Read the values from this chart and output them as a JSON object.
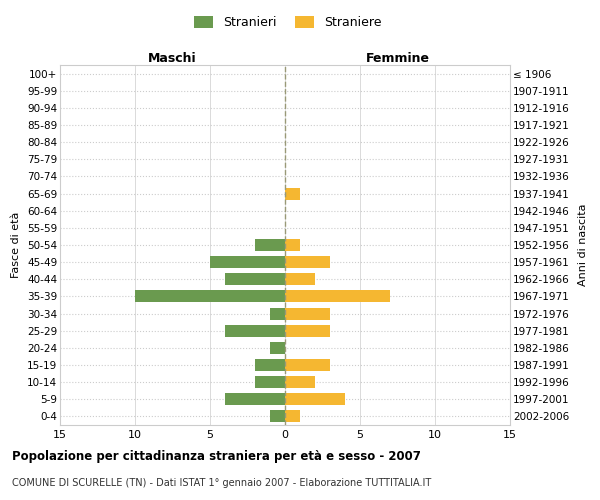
{
  "age_groups": [
    "100+",
    "95-99",
    "90-94",
    "85-89",
    "80-84",
    "75-79",
    "70-74",
    "65-69",
    "60-64",
    "55-59",
    "50-54",
    "45-49",
    "40-44",
    "35-39",
    "30-34",
    "25-29",
    "20-24",
    "15-19",
    "10-14",
    "5-9",
    "0-4"
  ],
  "birth_years": [
    "≤ 1906",
    "1907-1911",
    "1912-1916",
    "1917-1921",
    "1922-1926",
    "1927-1931",
    "1932-1936",
    "1937-1941",
    "1942-1946",
    "1947-1951",
    "1952-1956",
    "1957-1961",
    "1962-1966",
    "1967-1971",
    "1972-1976",
    "1977-1981",
    "1982-1986",
    "1987-1991",
    "1992-1996",
    "1997-2001",
    "2002-2006"
  ],
  "maschi": [
    0,
    0,
    0,
    0,
    0,
    0,
    0,
    0,
    0,
    0,
    2,
    5,
    4,
    10,
    1,
    4,
    1,
    2,
    2,
    4,
    1
  ],
  "femmine": [
    0,
    0,
    0,
    0,
    0,
    0,
    0,
    1,
    0,
    0,
    1,
    3,
    2,
    7,
    3,
    3,
    0,
    3,
    2,
    4,
    1
  ],
  "male_color": "#6a9a4f",
  "female_color": "#f5b731",
  "title1": "Popolazione per cittadinanza straniera per età e sesso - 2007",
  "title2": "COMUNE DI SCURELLE (TN) - Dati ISTAT 1° gennaio 2007 - Elaborazione TUTTITALIA.IT",
  "xlabel_left": "Maschi",
  "xlabel_right": "Femmine",
  "ylabel_left": "Fasce di età",
  "ylabel_right": "Anni di nascita",
  "legend_male": "Stranieri",
  "legend_female": "Straniere",
  "xlim": 15,
  "background_color": "#ffffff",
  "grid_color": "#cccccc"
}
